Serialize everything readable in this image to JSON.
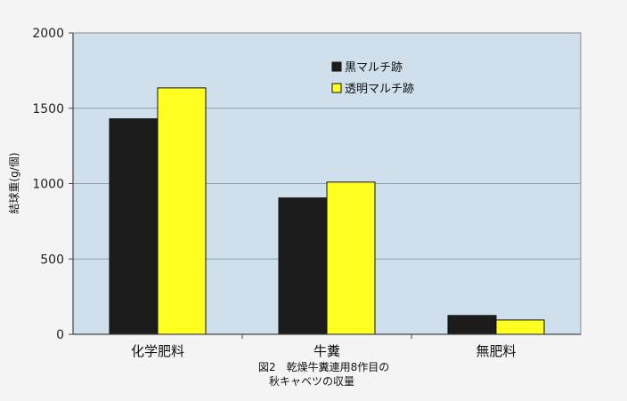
{
  "chart_data": {
    "type": "bar",
    "categories": [
      "化学肥料",
      "牛糞",
      "無肥料"
    ],
    "series": [
      {
        "name": "黒マルチ跡",
        "values": [
          1430,
          905,
          125
        ],
        "color": "#1c1c1c"
      },
      {
        "name": "透明マルチ跡",
        "values": [
          1635,
          1010,
          95
        ],
        "color": "#ffff22"
      }
    ],
    "ylabel": "結球重(g/個)",
    "ylim": [
      0,
      2000
    ],
    "yticks": [
      0,
      500,
      1000,
      1500,
      2000
    ],
    "grid": true,
    "legend_position": "top-center",
    "plot_background": "#cfe0ec",
    "caption": [
      "図2　乾燥牛糞連用8作目の",
      "秋キャベツの収量"
    ]
  }
}
